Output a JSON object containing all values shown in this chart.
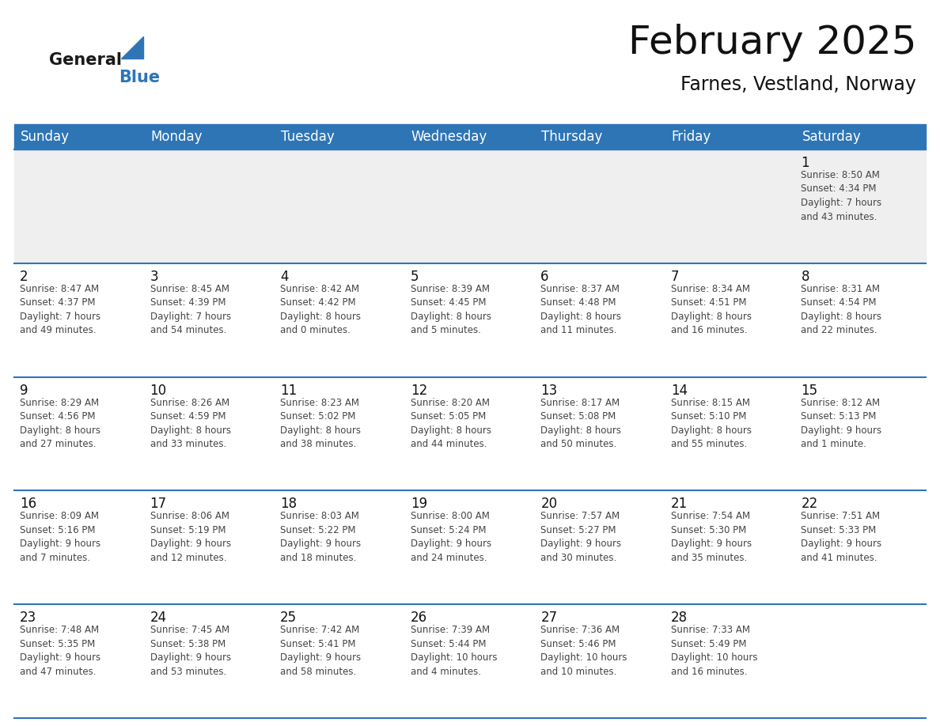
{
  "title": "February 2025",
  "subtitle": "Farnes, Vestland, Norway",
  "header_bg": "#2E75B6",
  "header_text": "#FFFFFF",
  "cell_bg_light": "#EFEFEF",
  "cell_bg_white": "#FFFFFF",
  "text_color": "#333333",
  "days_of_week": [
    "Sunday",
    "Monday",
    "Tuesday",
    "Wednesday",
    "Thursday",
    "Friday",
    "Saturday"
  ],
  "weeks": [
    [
      {
        "day": null,
        "info": null
      },
      {
        "day": null,
        "info": null
      },
      {
        "day": null,
        "info": null
      },
      {
        "day": null,
        "info": null
      },
      {
        "day": null,
        "info": null
      },
      {
        "day": null,
        "info": null
      },
      {
        "day": "1",
        "info": "Sunrise: 8:50 AM\nSunset: 4:34 PM\nDaylight: 7 hours\nand 43 minutes."
      }
    ],
    [
      {
        "day": "2",
        "info": "Sunrise: 8:47 AM\nSunset: 4:37 PM\nDaylight: 7 hours\nand 49 minutes."
      },
      {
        "day": "3",
        "info": "Sunrise: 8:45 AM\nSunset: 4:39 PM\nDaylight: 7 hours\nand 54 minutes."
      },
      {
        "day": "4",
        "info": "Sunrise: 8:42 AM\nSunset: 4:42 PM\nDaylight: 8 hours\nand 0 minutes."
      },
      {
        "day": "5",
        "info": "Sunrise: 8:39 AM\nSunset: 4:45 PM\nDaylight: 8 hours\nand 5 minutes."
      },
      {
        "day": "6",
        "info": "Sunrise: 8:37 AM\nSunset: 4:48 PM\nDaylight: 8 hours\nand 11 minutes."
      },
      {
        "day": "7",
        "info": "Sunrise: 8:34 AM\nSunset: 4:51 PM\nDaylight: 8 hours\nand 16 minutes."
      },
      {
        "day": "8",
        "info": "Sunrise: 8:31 AM\nSunset: 4:54 PM\nDaylight: 8 hours\nand 22 minutes."
      }
    ],
    [
      {
        "day": "9",
        "info": "Sunrise: 8:29 AM\nSunset: 4:56 PM\nDaylight: 8 hours\nand 27 minutes."
      },
      {
        "day": "10",
        "info": "Sunrise: 8:26 AM\nSunset: 4:59 PM\nDaylight: 8 hours\nand 33 minutes."
      },
      {
        "day": "11",
        "info": "Sunrise: 8:23 AM\nSunset: 5:02 PM\nDaylight: 8 hours\nand 38 minutes."
      },
      {
        "day": "12",
        "info": "Sunrise: 8:20 AM\nSunset: 5:05 PM\nDaylight: 8 hours\nand 44 minutes."
      },
      {
        "day": "13",
        "info": "Sunrise: 8:17 AM\nSunset: 5:08 PM\nDaylight: 8 hours\nand 50 minutes."
      },
      {
        "day": "14",
        "info": "Sunrise: 8:15 AM\nSunset: 5:10 PM\nDaylight: 8 hours\nand 55 minutes."
      },
      {
        "day": "15",
        "info": "Sunrise: 8:12 AM\nSunset: 5:13 PM\nDaylight: 9 hours\nand 1 minute."
      }
    ],
    [
      {
        "day": "16",
        "info": "Sunrise: 8:09 AM\nSunset: 5:16 PM\nDaylight: 9 hours\nand 7 minutes."
      },
      {
        "day": "17",
        "info": "Sunrise: 8:06 AM\nSunset: 5:19 PM\nDaylight: 9 hours\nand 12 minutes."
      },
      {
        "day": "18",
        "info": "Sunrise: 8:03 AM\nSunset: 5:22 PM\nDaylight: 9 hours\nand 18 minutes."
      },
      {
        "day": "19",
        "info": "Sunrise: 8:00 AM\nSunset: 5:24 PM\nDaylight: 9 hours\nand 24 minutes."
      },
      {
        "day": "20",
        "info": "Sunrise: 7:57 AM\nSunset: 5:27 PM\nDaylight: 9 hours\nand 30 minutes."
      },
      {
        "day": "21",
        "info": "Sunrise: 7:54 AM\nSunset: 5:30 PM\nDaylight: 9 hours\nand 35 minutes."
      },
      {
        "day": "22",
        "info": "Sunrise: 7:51 AM\nSunset: 5:33 PM\nDaylight: 9 hours\nand 41 minutes."
      }
    ],
    [
      {
        "day": "23",
        "info": "Sunrise: 7:48 AM\nSunset: 5:35 PM\nDaylight: 9 hours\nand 47 minutes."
      },
      {
        "day": "24",
        "info": "Sunrise: 7:45 AM\nSunset: 5:38 PM\nDaylight: 9 hours\nand 53 minutes."
      },
      {
        "day": "25",
        "info": "Sunrise: 7:42 AM\nSunset: 5:41 PM\nDaylight: 9 hours\nand 58 minutes."
      },
      {
        "day": "26",
        "info": "Sunrise: 7:39 AM\nSunset: 5:44 PM\nDaylight: 10 hours\nand 4 minutes."
      },
      {
        "day": "27",
        "info": "Sunrise: 7:36 AM\nSunset: 5:46 PM\nDaylight: 10 hours\nand 10 minutes."
      },
      {
        "day": "28",
        "info": "Sunrise: 7:33 AM\nSunset: 5:49 PM\nDaylight: 10 hours\nand 16 minutes."
      },
      {
        "day": null,
        "info": null
      }
    ]
  ],
  "logo_color1": "#1a1a1a",
  "logo_color2": "#2E75B6",
  "line_color": "#2E75B6",
  "fig_width": 11.88,
  "fig_height": 9.18,
  "dpi": 100
}
